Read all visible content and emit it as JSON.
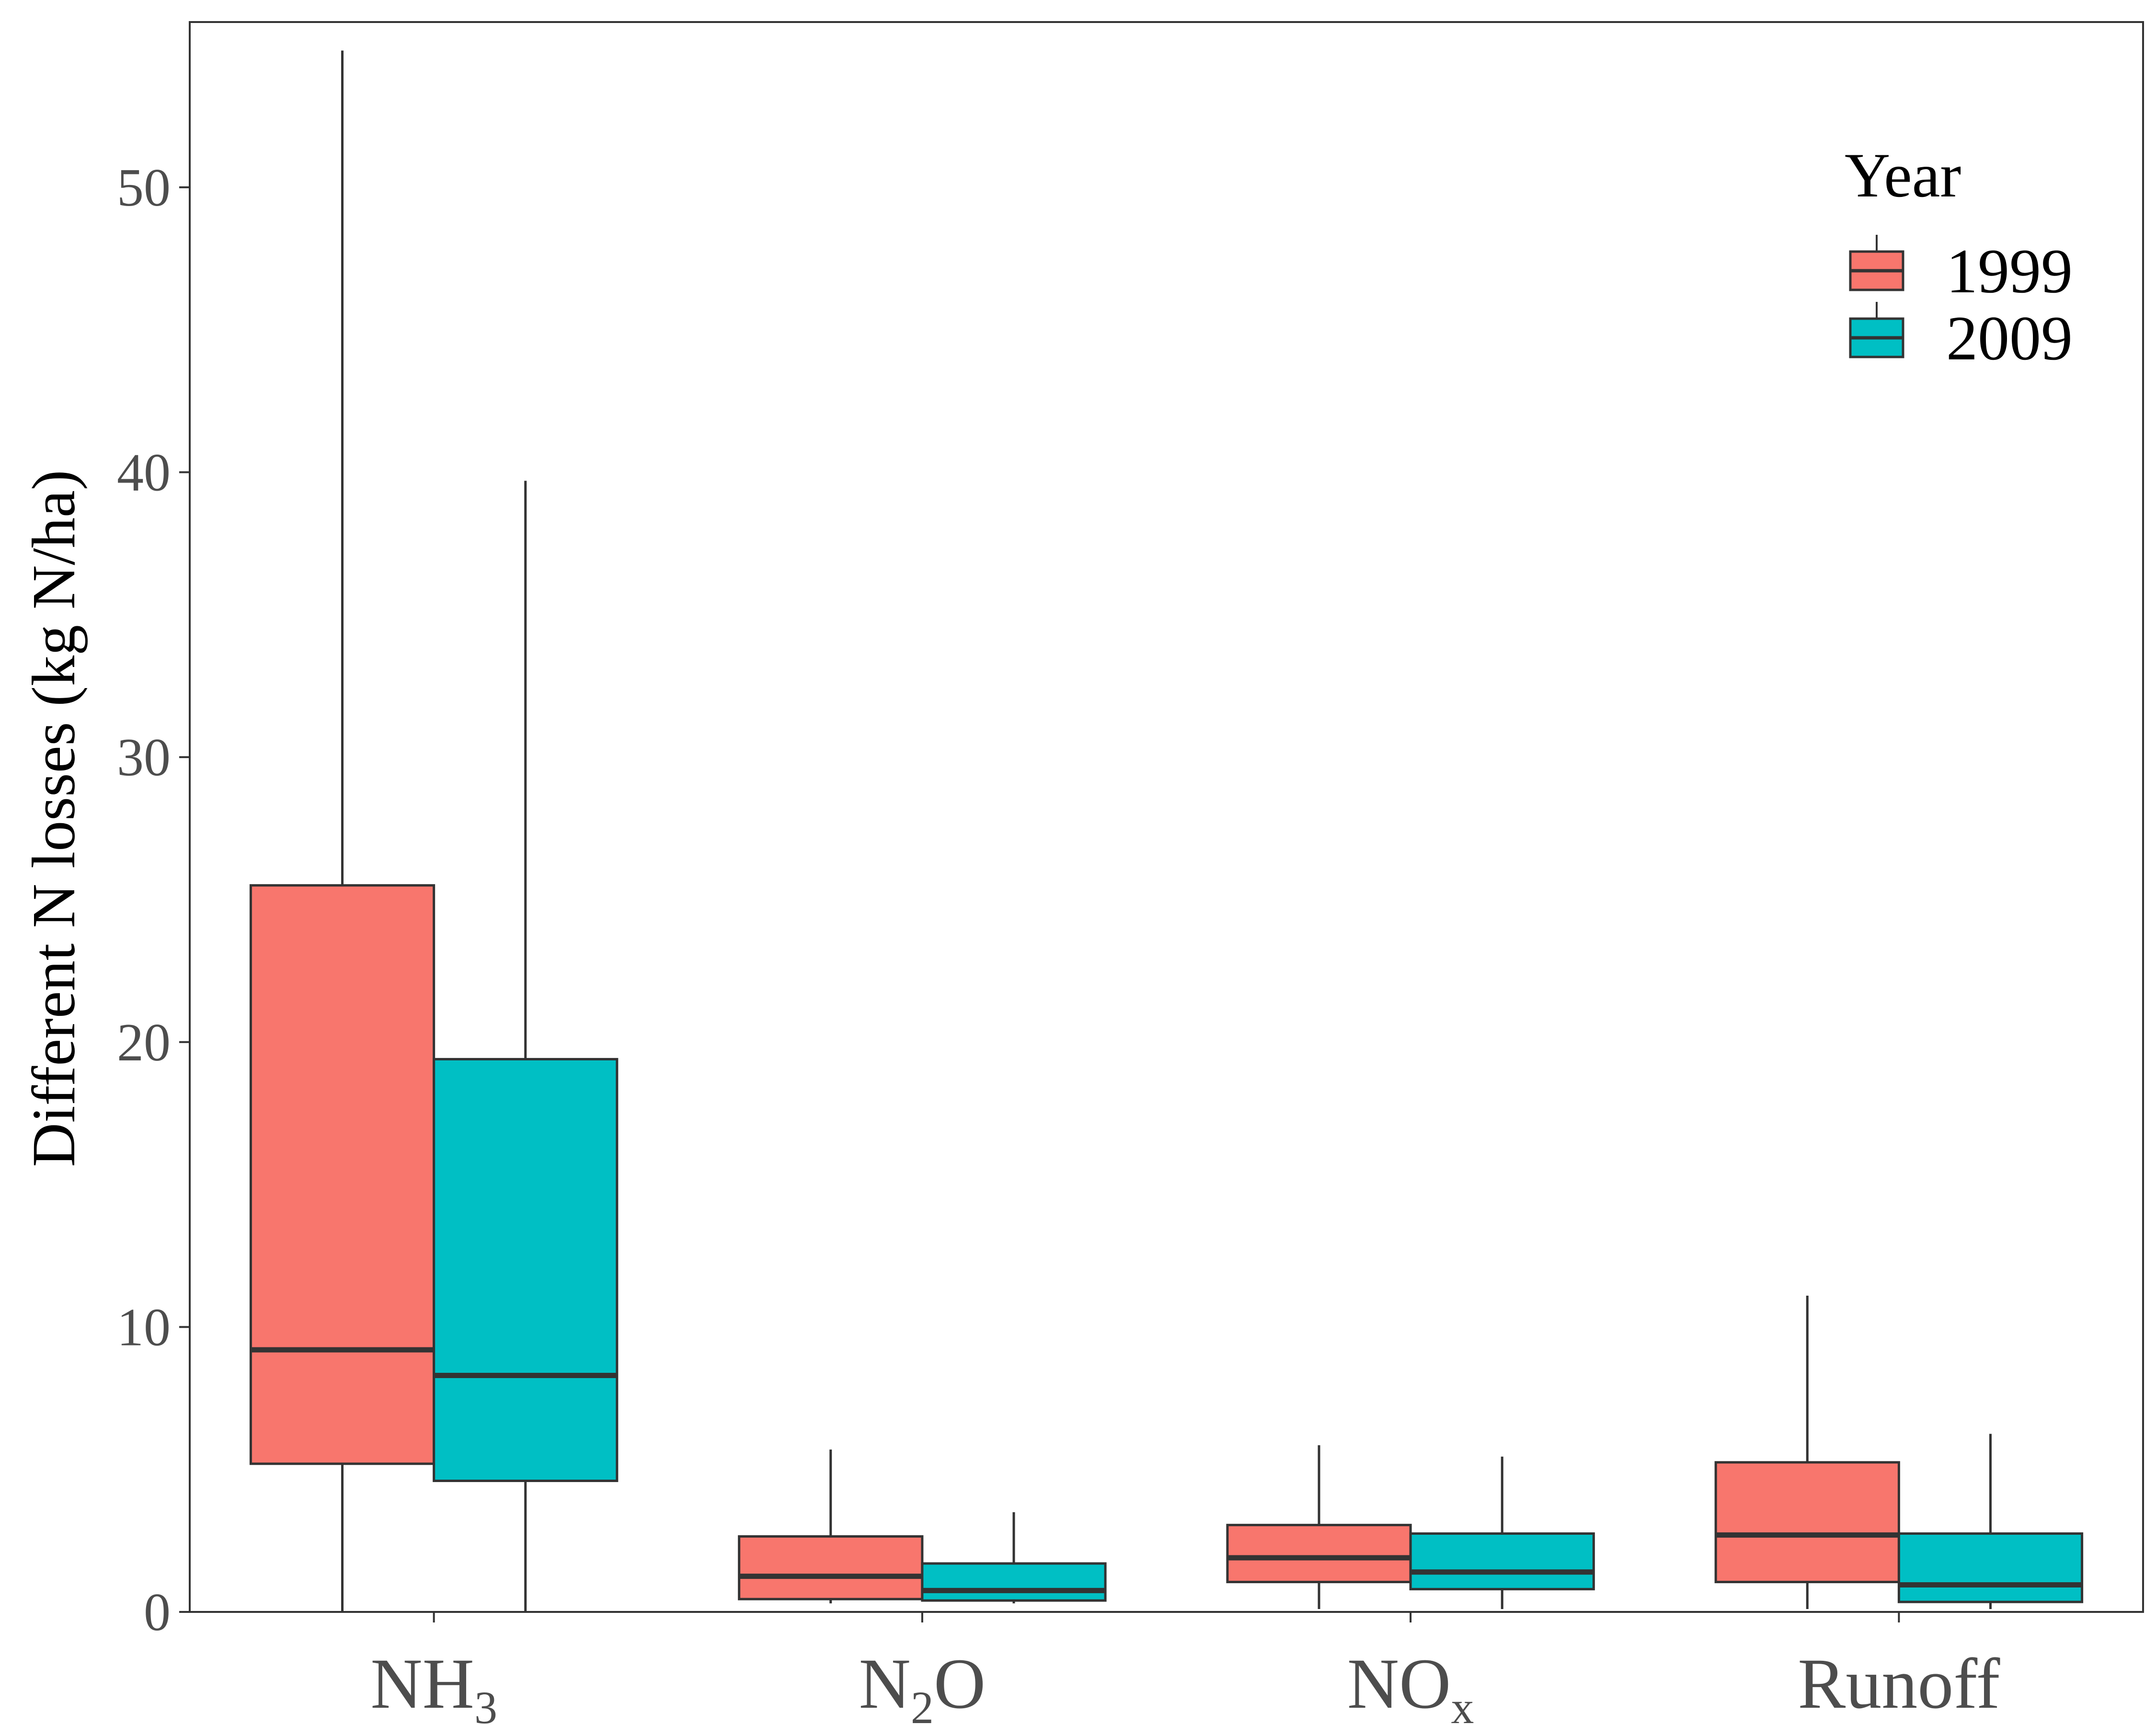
{
  "chart_data": {
    "type": "boxplot",
    "title": "",
    "xlabel": "",
    "ylabel": "Different N losses (kg N/ha)",
    "ylim": [
      0,
      55.8
    ],
    "yticks": [
      0,
      10,
      20,
      30,
      40,
      50
    ],
    "grid": false,
    "legend": {
      "title": "Year",
      "placement": "top-right"
    },
    "categories": [
      {
        "base": "NH",
        "sub": "3",
        "tail": ""
      },
      {
        "base": "N",
        "sub": "2",
        "tail": "O"
      },
      {
        "base": "NO",
        "sub": "x",
        "tail": ""
      },
      {
        "base": "Runoff",
        "sub": "",
        "tail": ""
      }
    ],
    "series": [
      {
        "name": "1999",
        "color": "#F8766D",
        "boxes": [
          {
            "whisker_low": 0.0,
            "q1": 5.2,
            "median": 9.2,
            "q3": 25.5,
            "whisker_high": 54.8
          },
          {
            "whisker_low": 0.3,
            "q1": 0.45,
            "median": 1.25,
            "q3": 2.65,
            "whisker_high": 5.7
          },
          {
            "whisker_low": 0.1,
            "q1": 1.05,
            "median": 1.9,
            "q3": 3.05,
            "whisker_high": 5.85
          },
          {
            "whisker_low": 0.1,
            "q1": 1.05,
            "median": 2.7,
            "q3": 5.25,
            "whisker_high": 11.1
          }
        ]
      },
      {
        "name": "2009",
        "color": "#00BFC4",
        "boxes": [
          {
            "whisker_low": 0.0,
            "q1": 4.6,
            "median": 8.3,
            "q3": 19.4,
            "whisker_high": 39.7
          },
          {
            "whisker_low": 0.3,
            "q1": 0.4,
            "median": 0.75,
            "q3": 1.7,
            "whisker_high": 3.5
          },
          {
            "whisker_low": 0.1,
            "q1": 0.8,
            "median": 1.4,
            "q3": 2.75,
            "whisker_high": 5.45
          },
          {
            "whisker_low": 0.1,
            "q1": 0.35,
            "median": 0.95,
            "q3": 2.75,
            "whisker_high": 6.25
          }
        ]
      }
    ]
  }
}
